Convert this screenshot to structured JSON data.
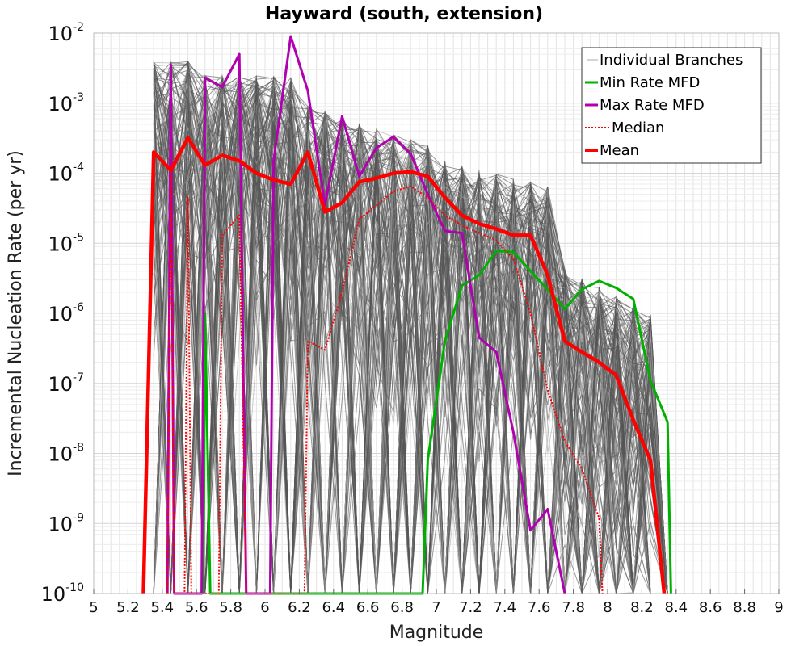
{
  "chart_data": {
    "type": "line",
    "title": "Hayward (south, extension)",
    "xlabel": "Magnitude",
    "ylabel": "Incremental Nucleation Rate (per yr)",
    "xlim": [
      5,
      9
    ],
    "ylim_log10": [
      -10,
      -2
    ],
    "y_scale": "log",
    "grid": true,
    "x_ticks": [
      "5",
      "5.2",
      "5.4",
      "5.6",
      "5.8",
      "6",
      "6.2",
      "6.4",
      "6.6",
      "6.8",
      "7",
      "7.2",
      "7.4",
      "7.6",
      "7.8",
      "8",
      "8.2",
      "8.4",
      "8.6",
      "8.8",
      "9"
    ],
    "y_ticks": [
      {
        "base": "10",
        "exp": "-2"
      },
      {
        "base": "10",
        "exp": "-3"
      },
      {
        "base": "10",
        "exp": "-4"
      },
      {
        "base": "10",
        "exp": "-5"
      },
      {
        "base": "10",
        "exp": "-6"
      },
      {
        "base": "10",
        "exp": "-7"
      },
      {
        "base": "10",
        "exp": "-8"
      },
      {
        "base": "10",
        "exp": "-9"
      },
      {
        "base": "10",
        "exp": "-10"
      }
    ],
    "legend_placement": "top-right",
    "series": [
      {
        "name": "Individual Branches",
        "color": "#555555",
        "style": "thin",
        "points": []
      },
      {
        "name": "Min Rate MFD",
        "color": "#00b000",
        "style": "solid",
        "points": [
          [
            5.64,
            1e-10
          ],
          [
            5.65,
            1e-06
          ],
          [
            5.68,
            1e-10
          ],
          [
            6.92,
            1e-10
          ],
          [
            6.95,
            8e-09
          ],
          [
            7.05,
            4e-07
          ],
          [
            7.15,
            2.5e-06
          ],
          [
            7.25,
            3.5e-06
          ],
          [
            7.35,
            7.8e-06
          ],
          [
            7.45,
            7.5e-06
          ],
          [
            7.55,
            4e-06
          ],
          [
            7.65,
            2.2e-06
          ],
          [
            7.75,
            1.15e-06
          ],
          [
            7.85,
            2.2e-06
          ],
          [
            7.95,
            2.9e-06
          ],
          [
            8.05,
            2.3e-06
          ],
          [
            8.15,
            1.6e-06
          ],
          [
            8.25,
            1.1e-07
          ],
          [
            8.35,
            2.8e-08
          ],
          [
            8.37,
            1e-10
          ]
        ]
      },
      {
        "name": "Max Rate MFD",
        "color": "#b000b0",
        "style": "solid",
        "points": [
          [
            5.43,
            1e-10
          ],
          [
            5.45,
            0.0035
          ],
          [
            5.47,
            1e-10
          ],
          [
            5.63,
            1e-10
          ],
          [
            5.65,
            0.0023
          ],
          [
            5.75,
            0.0017
          ],
          [
            5.85,
            0.005
          ],
          [
            5.89,
            1e-10
          ],
          [
            6.03,
            1e-10
          ],
          [
            6.05,
            0.00015
          ],
          [
            6.15,
            0.009
          ],
          [
            6.25,
            0.0015
          ],
          [
            6.35,
            3.5e-05
          ],
          [
            6.45,
            0.00065
          ],
          [
            6.55,
            9e-05
          ],
          [
            6.65,
            0.00023
          ],
          [
            6.75,
            0.00033
          ],
          [
            6.85,
            0.00019
          ],
          [
            6.95,
            5e-05
          ],
          [
            7.05,
            1.5e-05
          ],
          [
            7.15,
            1.4e-05
          ],
          [
            7.25,
            4.5e-07
          ],
          [
            7.35,
            2.8e-07
          ],
          [
            7.45,
            2e-08
          ],
          [
            7.55,
            8e-10
          ],
          [
            7.65,
            1.6e-09
          ],
          [
            7.75,
            1e-10
          ]
        ]
      },
      {
        "name": "Median",
        "color": "#ff0000",
        "style": "dotted",
        "points": [
          [
            5.43,
            1e-10
          ],
          [
            5.45,
            0.0001
          ],
          [
            5.47,
            1e-10
          ],
          [
            5.53,
            1e-10
          ],
          [
            5.55,
            4.5e-05
          ],
          [
            5.57,
            1e-10
          ],
          [
            5.73,
            1e-10
          ],
          [
            5.75,
            1.3e-05
          ],
          [
            5.85,
            2.5e-05
          ],
          [
            5.89,
            1e-10
          ],
          [
            6.23,
            1e-10
          ],
          [
            6.25,
            4e-07
          ],
          [
            6.35,
            3e-07
          ],
          [
            6.45,
            2e-06
          ],
          [
            6.55,
            2.2e-05
          ],
          [
            6.65,
            3.5e-05
          ],
          [
            6.75,
            5.5e-05
          ],
          [
            6.85,
            6.5e-05
          ],
          [
            6.95,
            4.5e-05
          ],
          [
            7.05,
            2.5e-05
          ],
          [
            7.15,
            1.8e-05
          ],
          [
            7.25,
            1.4e-05
          ],
          [
            7.35,
            1.1e-05
          ],
          [
            7.45,
            6e-06
          ],
          [
            7.55,
            1e-06
          ],
          [
            7.65,
            8e-08
          ],
          [
            7.75,
            1.5e-08
          ],
          [
            7.85,
            6e-09
          ],
          [
            7.95,
            1.2e-09
          ],
          [
            7.97,
            1e-10
          ]
        ]
      },
      {
        "name": "Mean",
        "color": "#ff0000",
        "style": "thick",
        "points": [
          [
            5.29,
            1e-10
          ],
          [
            5.35,
            0.0002
          ],
          [
            5.45,
            0.00011
          ],
          [
            5.55,
            0.00032
          ],
          [
            5.65,
            0.00013
          ],
          [
            5.75,
            0.00018
          ],
          [
            5.85,
            0.00015
          ],
          [
            5.95,
            0.0001
          ],
          [
            6.05,
            8e-05
          ],
          [
            6.15,
            7e-05
          ],
          [
            6.25,
            0.0002
          ],
          [
            6.35,
            2.8e-05
          ],
          [
            6.45,
            3.8e-05
          ],
          [
            6.55,
            7.5e-05
          ],
          [
            6.65,
            8.5e-05
          ],
          [
            6.75,
            0.0001
          ],
          [
            6.85,
            0.000105
          ],
          [
            6.95,
            9e-05
          ],
          [
            7.05,
            4.5e-05
          ],
          [
            7.15,
            2.5e-05
          ],
          [
            7.25,
            1.9e-05
          ],
          [
            7.35,
            1.6e-05
          ],
          [
            7.45,
            1.3e-05
          ],
          [
            7.55,
            1.3e-05
          ],
          [
            7.65,
            3.5e-06
          ],
          [
            7.75,
            4e-07
          ],
          [
            7.85,
            2.8e-07
          ],
          [
            7.95,
            2e-07
          ],
          [
            8.05,
            1.3e-07
          ],
          [
            8.15,
            3e-08
          ],
          [
            8.25,
            8e-09
          ],
          [
            8.33,
            1e-10
          ]
        ]
      }
    ]
  }
}
